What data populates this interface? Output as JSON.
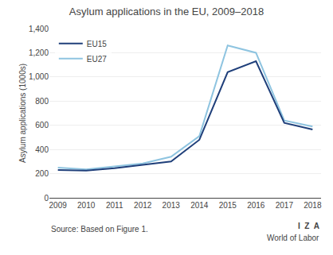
{
  "chart_data": {
    "type": "line",
    "title": "Asylum applications in the EU, 2009–2018",
    "ylabel": "Asylum applications (1000s)",
    "x": [
      2009,
      2010,
      2011,
      2012,
      2013,
      2014,
      2015,
      2016,
      2017,
      2018
    ],
    "series": [
      {
        "name": "EU27",
        "color": "#8ec4e0",
        "values": [
          250,
          235,
          260,
          285,
          340,
          510,
          1260,
          1200,
          640,
          590
        ]
      },
      {
        "name": "EU15",
        "color": "#1f3f7a",
        "values": [
          230,
          225,
          245,
          270,
          300,
          480,
          1040,
          1130,
          620,
          565
        ]
      }
    ],
    "xlim": [
      2008.7,
      2018.3
    ],
    "xticks": [
      2009,
      2010,
      2011,
      2012,
      2013,
      2014,
      2015,
      2016,
      2017,
      2018
    ],
    "ylim": [
      0,
      1400
    ],
    "yticks": [
      0,
      200,
      400,
      600,
      800,
      {
        "value": 1000,
        "label": "1,000"
      },
      {
        "value": 1200,
        "label": "1,200"
      },
      {
        "value": 1400,
        "label": "1,400"
      }
    ],
    "grid": true,
    "legend": "upper left",
    "annotations": [
      "Source: Based on Figure 1.",
      "I  Z  A",
      "World of Labor"
    ]
  }
}
